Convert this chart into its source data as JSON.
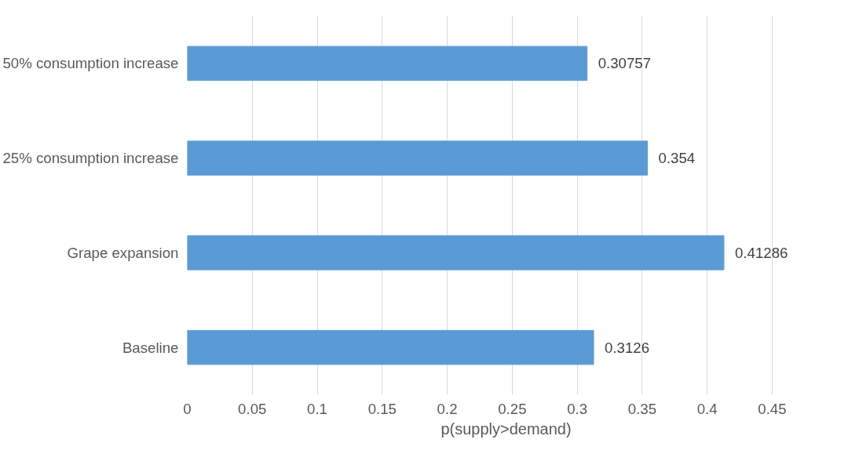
{
  "chart_data": {
    "type": "bar",
    "orientation": "horizontal",
    "xlabel": "p(supply>demand)",
    "categories": [
      "50% consumption increase",
      "25% consumption increase",
      "Grape expansion",
      "Baseline"
    ],
    "values": [
      0.30757,
      0.354,
      0.41286,
      0.3126
    ],
    "color": "#5b9bd5",
    "xlim": [
      0,
      0.45
    ],
    "xticks": [
      0,
      0.05,
      0.1,
      0.15,
      0.2,
      0.25,
      0.3,
      0.35,
      0.4,
      0.45
    ],
    "grid": "x",
    "data_labels": true
  }
}
